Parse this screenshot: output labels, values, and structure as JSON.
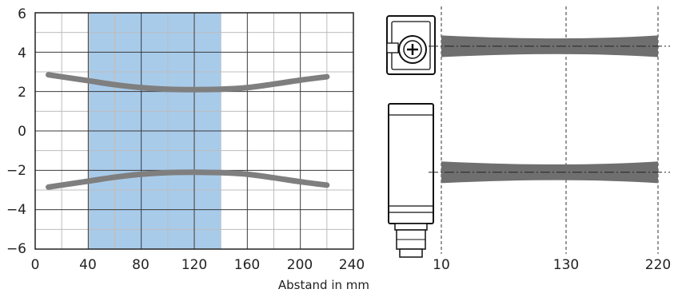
{
  "chart_data": [
    {
      "type": "line",
      "xlabel": "Abstand in mm",
      "ylabel": "",
      "xlim": [
        0,
        240
      ],
      "ylim": [
        -6,
        6
      ],
      "x_ticks": [
        "0",
        "40",
        "80",
        "120",
        "160",
        "200",
        "240"
      ],
      "y_ticks": [
        "6",
        "4",
        "2",
        "0",
        "−2",
        "−4",
        "−6"
      ],
      "grid": true,
      "shaded_region": {
        "x_start": 40,
        "x_end": 140,
        "color": "#a9cbea"
      },
      "series_color": "#7f7f7f",
      "series": [
        {
          "x": [
            10,
            40,
            60,
            80,
            100,
            120,
            140,
            160,
            180,
            200,
            220
          ],
          "y": [
            2.85,
            2.55,
            2.35,
            2.2,
            2.12,
            2.1,
            2.12,
            2.2,
            2.38,
            2.58,
            2.75
          ]
        },
        {
          "x": [
            10,
            40,
            60,
            80,
            100,
            120,
            140,
            160,
            180,
            200,
            220
          ],
          "y": [
            -2.85,
            -2.55,
            -2.35,
            -2.2,
            -2.12,
            -2.1,
            -2.12,
            -2.2,
            -2.38,
            -2.58,
            -2.75
          ]
        }
      ]
    },
    {
      "type": "area",
      "x_ticks": [
        "10",
        "130",
        "220"
      ],
      "beam_color": "#6f6f6f",
      "beams": [
        {
          "center": 4.3,
          "x": [
            10,
            130,
            220
          ],
          "half_width": [
            0.55,
            0.35,
            0.55
          ]
        },
        {
          "center": -2.1,
          "x": [
            10,
            130,
            220
          ],
          "half_width": [
            0.55,
            0.35,
            0.55
          ]
        }
      ]
    }
  ]
}
